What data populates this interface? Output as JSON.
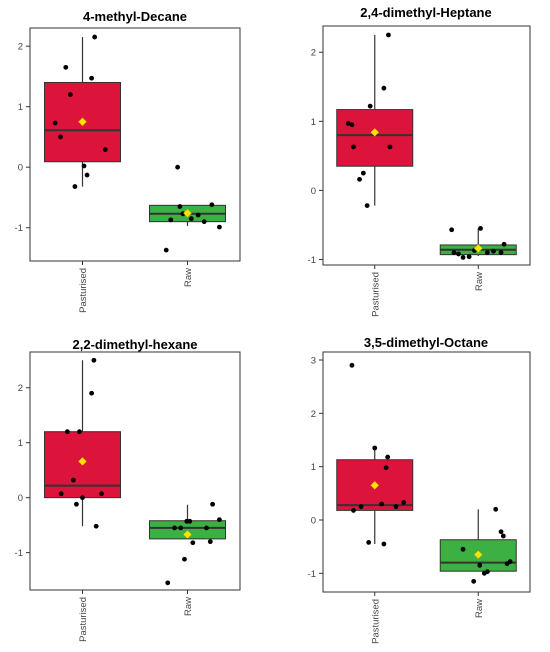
{
  "chart_data": [
    {
      "type": "box",
      "title": "4-methyl-Decane",
      "categories": [
        "Pasturised",
        "Raw"
      ],
      "ylim": [
        -1.55,
        2.3
      ],
      "yticks": [
        -1,
        0,
        1,
        2
      ],
      "grid": false,
      "boxes": [
        {
          "category": "Pasturised",
          "color": "#DC143C",
          "q1": 0.09,
          "median": 0.61,
          "q3": 1.4,
          "whisker_low": -0.32,
          "whisker_high": 2.15,
          "mean": 0.75,
          "points": [
            [
              0.01,
              0.5
            ],
            [
              -0.06,
              0.73
            ],
            [
              0.08,
              1.65
            ],
            [
              0.14,
              1.2
            ],
            [
              0.2,
              -0.32
            ],
            [
              0.32,
              0.02
            ],
            [
              0.36,
              -0.13
            ],
            [
              0.42,
              1.47
            ],
            [
              0.46,
              2.15
            ],
            [
              0.6,
              0.29
            ]
          ]
        },
        {
          "category": "Raw",
          "color": "#3CB043",
          "q1": -0.9,
          "median": -0.77,
          "q3": -0.63,
          "whisker_low": -0.97,
          "whisker_high": -0.63,
          "mean": -0.76,
          "points": [
            [
              0.02,
              -1.37
            ],
            [
              0.08,
              -0.87
            ],
            [
              0.17,
              0.0
            ],
            [
              0.2,
              -0.65
            ],
            [
              0.24,
              -0.77
            ],
            [
              0.35,
              -0.85
            ],
            [
              0.44,
              -0.79
            ],
            [
              0.52,
              -0.9
            ],
            [
              0.62,
              -0.62
            ],
            [
              0.72,
              -0.99
            ]
          ]
        }
      ]
    },
    {
      "type": "box",
      "title": "2,4-dimethyl-Heptane",
      "categories": [
        "Pasturised",
        "Raw"
      ],
      "ylim": [
        -1.08,
        2.38
      ],
      "yticks": [
        -1,
        0,
        1,
        2
      ],
      "grid": false,
      "boxes": [
        {
          "category": "Pasturised",
          "color": "#DC143C",
          "q1": 0.35,
          "median": 0.8,
          "q3": 1.17,
          "whisker_low": -0.22,
          "whisker_high": 2.25,
          "mean": 0.84,
          "points": [
            [
              -0.05,
              0.97
            ],
            [
              0.0,
              0.95
            ],
            [
              0.02,
              0.63
            ],
            [
              0.1,
              0.16
            ],
            [
              0.15,
              0.25
            ],
            [
              0.2,
              -0.22
            ],
            [
              0.24,
              1.22
            ],
            [
              0.3,
              0.82
            ],
            [
              0.42,
              1.48
            ],
            [
              0.48,
              2.25
            ],
            [
              0.5,
              0.63
            ]
          ]
        },
        {
          "category": "Raw",
          "color": "#3CB043",
          "q1": -0.93,
          "median": -0.86,
          "q3": -0.79,
          "whisker_low": -0.95,
          "whisker_high": -0.55,
          "mean": -0.84,
          "points": [
            [
              -0.05,
              -0.57
            ],
            [
              -0.02,
              -0.9
            ],
            [
              0.04,
              -0.92
            ],
            [
              0.1,
              -0.97
            ],
            [
              0.18,
              -0.96
            ],
            [
              0.25,
              -0.87
            ],
            [
              0.33,
              -0.55
            ],
            [
              0.42,
              -0.9
            ],
            [
              0.5,
              -0.88
            ],
            [
              0.6,
              -0.9
            ],
            [
              0.64,
              -0.78
            ]
          ]
        }
      ]
    },
    {
      "type": "box",
      "title": "2,2-dimethyl-hexane",
      "categories": [
        "Pasturised",
        "Raw"
      ],
      "ylim": [
        -1.68,
        2.65
      ],
      "yticks": [
        -1,
        0,
        1,
        2
      ],
      "grid": false,
      "boxes": [
        {
          "category": "Pasturised",
          "color": "#DC143C",
          "q1": 0.0,
          "median": 0.22,
          "q3": 1.2,
          "whisker_low": -0.52,
          "whisker_high": 2.5,
          "mean": 0.66,
          "points": [
            [
              0.02,
              0.07
            ],
            [
              0.1,
              1.2
            ],
            [
              0.18,
              0.32
            ],
            [
              0.22,
              -0.12
            ],
            [
              0.26,
              1.2
            ],
            [
              0.3,
              0.0
            ],
            [
              0.42,
              1.9
            ],
            [
              0.45,
              2.5
            ],
            [
              0.48,
              -0.52
            ],
            [
              0.55,
              0.07
            ]
          ]
        },
        {
          "category": "Raw",
          "color": "#3CB043",
          "q1": -0.75,
          "median": -0.55,
          "q3": -0.42,
          "whisker_low": -0.75,
          "whisker_high": -0.13,
          "mean": -0.67,
          "points": [
            [
              0.04,
              -1.55
            ],
            [
              0.13,
              -0.55
            ],
            [
              0.21,
              -0.55
            ],
            [
              0.26,
              -1.12
            ],
            [
              0.29,
              -0.43
            ],
            [
              0.33,
              -0.43
            ],
            [
              0.37,
              -0.82
            ],
            [
              0.55,
              -0.55
            ],
            [
              0.6,
              -0.8
            ],
            [
              0.63,
              -0.12
            ],
            [
              0.72,
              -0.4
            ]
          ]
        }
      ]
    },
    {
      "type": "box",
      "title": "3,5-dimethyl-Octane",
      "categories": [
        "Pasturised",
        "Raw"
      ],
      "ylim": [
        -1.35,
        3.15
      ],
      "yticks": [
        -1,
        0,
        1,
        2,
        3
      ],
      "grid": false,
      "boxes": [
        {
          "category": "Pasturised",
          "color": "#DC143C",
          "q1": 0.18,
          "median": 0.28,
          "q3": 1.13,
          "whisker_low": -0.45,
          "whisker_high": 1.33,
          "mean": 0.65,
          "points": [
            [
              0.0,
              2.9
            ],
            [
              0.02,
              0.18
            ],
            [
              0.12,
              0.25
            ],
            [
              0.22,
              -0.42
            ],
            [
              0.3,
              1.35
            ],
            [
              0.39,
              0.3
            ],
            [
              0.42,
              -0.45
            ],
            [
              0.45,
              0.98
            ],
            [
              0.47,
              1.18
            ],
            [
              0.58,
              0.25
            ],
            [
              0.68,
              0.33
            ]
          ]
        },
        {
          "category": "Raw",
          "color": "#3CB043",
          "q1": -0.96,
          "median": -0.8,
          "q3": -0.37,
          "whisker_low": -0.96,
          "whisker_high": 0.2,
          "mean": -0.65,
          "points": [
            [
              0.1,
              -0.55
            ],
            [
              0.24,
              -1.15
            ],
            [
              0.32,
              -0.85
            ],
            [
              0.38,
              -1.0
            ],
            [
              0.42,
              -0.97
            ],
            [
              0.53,
              0.2
            ],
            [
              0.6,
              -0.22
            ],
            [
              0.63,
              -0.3
            ],
            [
              0.68,
              -0.82
            ],
            [
              0.72,
              -0.78
            ]
          ]
        }
      ]
    }
  ]
}
